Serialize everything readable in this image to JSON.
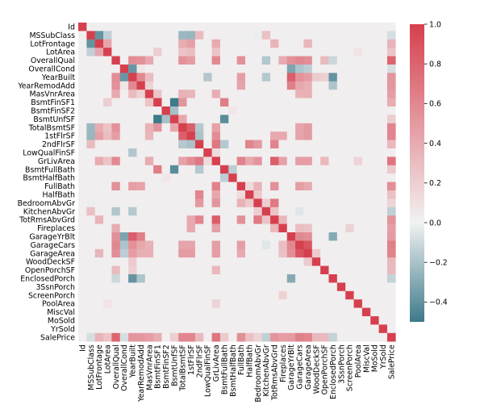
{
  "chart_data": {
    "type": "heatmap",
    "title": "",
    "variables": [
      "Id",
      "MSSubClass",
      "LotFrontage",
      "LotArea",
      "OverallQual",
      "OverallCond",
      "YearBuilt",
      "YearRemodAdd",
      "MasVnrArea",
      "BsmtFinSF1",
      "BsmtFinSF2",
      "BsmtUnfSF",
      "TotalBsmtSF",
      "1stFlrSF",
      "2ndFlrSF",
      "LowQualFinSF",
      "GrLivArea",
      "BsmtFullBath",
      "BsmtHalfBath",
      "FullBath",
      "HalfBath",
      "BedroomAbvGr",
      "KitchenAbvGr",
      "TotRmsAbvGrd",
      "Fireplaces",
      "GarageYrBlt",
      "GarageCars",
      "GarageArea",
      "WoodDeckSF",
      "OpenPorchSF",
      "EnclosedPorch",
      "3SsnPorch",
      "ScreenPorch",
      "PoolArea",
      "MiscVal",
      "MoSold",
      "YrSold",
      "SalePrice"
    ],
    "colorbar": {
      "vmin": -0.5,
      "vmax": 1.0,
      "ticks": [
        1.0,
        0.8,
        0.6,
        0.4,
        0.2,
        0.0,
        -0.2,
        -0.4
      ],
      "tick_labels": [
        "1.0",
        "0.8",
        "0.6",
        "0.4",
        "0.2",
        "0.0",
        "−0.2",
        "−0.4"
      ],
      "low_color": "#3d7a8a",
      "mid_color": "#f2f2f2",
      "high_color": "#d6404e"
    },
    "diagonal": 1.0,
    "default_value": 0.02,
    "strong_pairs": [
      [
        "OverallQual",
        "SalePrice",
        0.79
      ],
      [
        "GrLivArea",
        "SalePrice",
        0.71
      ],
      [
        "GarageCars",
        "SalePrice",
        0.64
      ],
      [
        "GarageArea",
        "SalePrice",
        0.62
      ],
      [
        "TotalBsmtSF",
        "SalePrice",
        0.61
      ],
      [
        "1stFlrSF",
        "SalePrice",
        0.61
      ],
      [
        "FullBath",
        "SalePrice",
        0.56
      ],
      [
        "TotRmsAbvGrd",
        "SalePrice",
        0.53
      ],
      [
        "YearBuilt",
        "SalePrice",
        0.52
      ],
      [
        "YearRemodAdd",
        "SalePrice",
        0.51
      ],
      [
        "GarageYrBlt",
        "SalePrice",
        0.49
      ],
      [
        "MasVnrArea",
        "SalePrice",
        0.48
      ],
      [
        "Fireplaces",
        "SalePrice",
        0.47
      ],
      [
        "BsmtFinSF1",
        "SalePrice",
        0.39
      ],
      [
        "LotFrontage",
        "SalePrice",
        0.35
      ],
      [
        "WoodDeckSF",
        "SalePrice",
        0.32
      ],
      [
        "2ndFlrSF",
        "SalePrice",
        0.32
      ],
      [
        "OpenPorchSF",
        "SalePrice",
        0.32
      ],
      [
        "HalfBath",
        "SalePrice",
        0.28
      ],
      [
        "LotArea",
        "SalePrice",
        0.26
      ],
      [
        "BsmtFullBath",
        "SalePrice",
        0.23
      ],
      [
        "BsmtUnfSF",
        "SalePrice",
        0.21
      ],
      [
        "BedroomAbvGr",
        "SalePrice",
        0.17
      ],
      [
        "EnclosedPorch",
        "SalePrice",
        -0.13
      ],
      [
        "KitchenAbvGr",
        "SalePrice",
        -0.14
      ],
      [
        "MSSubClass",
        "SalePrice",
        -0.08
      ],
      [
        "OverallCond",
        "SalePrice",
        -0.08
      ],
      [
        "GarageCars",
        "GarageArea",
        0.88
      ],
      [
        "YearBuilt",
        "GarageYrBlt",
        0.83
      ],
      [
        "GrLivArea",
        "TotRmsAbvGrd",
        0.83
      ],
      [
        "TotalBsmtSF",
        "1stFlrSF",
        0.82
      ],
      [
        "2ndFlrSF",
        "GrLivArea",
        0.69
      ],
      [
        "BedroomAbvGr",
        "TotRmsAbvGrd",
        0.68
      ],
      [
        "BsmtFinSF1",
        "BsmtFullBath",
        0.65
      ],
      [
        "YearRemodAdd",
        "GarageYrBlt",
        0.64
      ],
      [
        "GrLivArea",
        "FullBath",
        0.63
      ],
      [
        "2ndFlrSF",
        "TotRmsAbvGrd",
        0.62
      ],
      [
        "2ndFlrSF",
        "HalfBath",
        0.61
      ],
      [
        "OverallQual",
        "GarageCars",
        0.6
      ],
      [
        "YearBuilt",
        "YearRemodAdd",
        0.59
      ],
      [
        "GrLivArea",
        "BedroomAbvGr",
        0.52
      ],
      [
        "OverallQual",
        "GrLivArea",
        0.59
      ],
      [
        "OverallQual",
        "YearBuilt",
        0.57
      ],
      [
        "YearBuilt",
        "GarageCars",
        0.54
      ],
      [
        "OverallQual",
        "GarageArea",
        0.56
      ],
      [
        "OverallQual",
        "YearRemodAdd",
        0.55
      ],
      [
        "FullBath",
        "TotRmsAbvGrd",
        0.55
      ],
      [
        "OverallQual",
        "TotalBsmtSF",
        0.54
      ],
      [
        "GarageYrBlt",
        "GarageCars",
        0.59
      ],
      [
        "GarageYrBlt",
        "GarageArea",
        0.56
      ],
      [
        "2ndFlrSF",
        "BedroomAbvGr",
        0.5
      ],
      [
        "BsmtFinSF1",
        "TotalBsmtSF",
        0.52
      ],
      [
        "OverallQual",
        "FullBath",
        0.55
      ],
      [
        "OverallQual",
        "GarageYrBlt",
        0.55
      ],
      [
        "1stFlrSF",
        "GrLivArea",
        0.57
      ],
      [
        "OverallQual",
        "1stFlrSF",
        0.48
      ],
      [
        "YearBuilt",
        "FullBath",
        0.47
      ],
      [
        "YearBuilt",
        "GarageArea",
        0.48
      ],
      [
        "YearRemodAdd",
        "FullBath",
        0.44
      ],
      [
        "1stFlrSF",
        "GarageArea",
        0.49
      ],
      [
        "TotalBsmtSF",
        "GarageArea",
        0.49
      ],
      [
        "1stFlrSF",
        "TotRmsAbvGrd",
        0.41
      ],
      [
        "GrLivArea",
        "HalfBath",
        0.42
      ],
      [
        "MasVnrArea",
        "OverallQual",
        0.41
      ],
      [
        "MasVnrArea",
        "TotalBsmtSF",
        0.36
      ],
      [
        "MasVnrArea",
        "GarageArea",
        0.37
      ],
      [
        "LotFrontage",
        "1stFlrSF",
        0.46
      ],
      [
        "LotFrontage",
        "TotalBsmtSF",
        0.39
      ],
      [
        "LotFrontage",
        "LotArea",
        0.43
      ],
      [
        "LotArea",
        "1stFlrSF",
        0.3
      ],
      [
        "FullBath",
        "HalfBath",
        0.14
      ],
      [
        "Fireplaces",
        "GrLivArea",
        0.46
      ],
      [
        "Fireplaces",
        "1stFlrSF",
        0.41
      ],
      [
        "KitchenAbvGr",
        "BedroomAbvGr",
        0.2
      ],
      [
        "BsmtFinSF2",
        "BsmtHalfBath",
        0.07
      ],
      [
        "BsmtUnfSF",
        "TotalBsmtSF",
        0.42
      ],
      [
        "YearRemodAdd",
        "GarageCars",
        0.42
      ],
      [
        "YearRemodAdd",
        "GarageArea",
        0.37
      ],
      [
        "MSSubClass",
        "LotFrontage",
        -0.39
      ],
      [
        "MSSubClass",
        "LotArea",
        -0.14
      ],
      [
        "MSSubClass",
        "2ndFlrSF",
        0.31
      ],
      [
        "MSSubClass",
        "1stFlrSF",
        -0.25
      ],
      [
        "MSSubClass",
        "TotalBsmtSF",
        -0.24
      ],
      [
        "MSSubClass",
        "BedroomAbvGr",
        -0.02
      ],
      [
        "MSSubClass",
        "KitchenAbvGr",
        0.28
      ],
      [
        "OverallCond",
        "YearBuilt",
        -0.38
      ],
      [
        "OverallCond",
        "YearRemodAdd",
        0.07
      ],
      [
        "OverallCond",
        "GarageYrBlt",
        -0.32
      ],
      [
        "OverallCond",
        "GarageCars",
        -0.19
      ],
      [
        "OverallCond",
        "GarageArea",
        -0.15
      ],
      [
        "BsmtFinSF1",
        "BsmtUnfSF",
        -0.5
      ],
      [
        "BsmtFullBath",
        "BsmtUnfSF",
        -0.42
      ],
      [
        "BsmtFinSF2",
        "BsmtUnfSF",
        -0.21
      ],
      [
        "YearBuilt",
        "EnclosedPorch",
        -0.39
      ],
      [
        "YearRemodAdd",
        "EnclosedPorch",
        -0.19
      ],
      [
        "GarageYrBlt",
        "EnclosedPorch",
        -0.3
      ],
      [
        "OverallQual",
        "EnclosedPorch",
        -0.11
      ],
      [
        "2ndFlrSF",
        "1stFlrSF",
        -0.2
      ],
      [
        "2ndFlrSF",
        "TotalBsmtSF",
        -0.17
      ],
      [
        "BsmtFullBath",
        "BsmtHalfBath",
        -0.15
      ],
      [
        "BsmtFullBath",
        "2ndFlrSF",
        -0.17
      ],
      [
        "BsmtHalfBath",
        "BsmtFinSF2",
        0.07
      ],
      [
        "KitchenAbvGr",
        "YearBuilt",
        -0.17
      ],
      [
        "KitchenAbvGr",
        "OverallQual",
        -0.18
      ],
      [
        "KitchenAbvGr",
        "TotRmsAbvGrd",
        0.26
      ],
      [
        "KitchenAbvGr",
        "GarageCars",
        -0.05
      ],
      [
        "LowQualFinSF",
        "GrLivArea",
        0.13
      ],
      [
        "LowQualFinSF",
        "YearBuilt",
        -0.18
      ],
      [
        "MasVnrArea",
        "YearBuilt",
        0.31
      ],
      [
        "PoolArea",
        "LotArea",
        0.08
      ],
      [
        "PoolArea",
        "GrLivArea",
        0.17
      ],
      [
        "ScreenPorch",
        "Fireplaces",
        0.18
      ],
      [
        "WoodDeckSF",
        "YearBuilt",
        0.22
      ],
      [
        "WoodDeckSF",
        "GarageArea",
        0.22
      ],
      [
        "OpenPorchSF",
        "OverallQual",
        0.31
      ],
      [
        "OpenPorchSF",
        "GrLivArea",
        0.33
      ],
      [
        "OpenPorchSF",
        "YearBuilt",
        0.19
      ],
      [
        "BedroomAbvGr",
        "FullBath",
        0.36
      ],
      [
        "BedroomAbvGr",
        "HalfBath",
        0.23
      ],
      [
        "Fireplaces",
        "TotRmsAbvGrd",
        0.33
      ],
      [
        "Fireplaces",
        "GarageArea",
        0.27
      ],
      [
        "Fireplaces",
        "GarageCars",
        0.3
      ],
      [
        "Fireplaces",
        "OverallQual",
        0.4
      ],
      [
        "GarageCars",
        "FullBath",
        0.47
      ],
      [
        "GarageArea",
        "FullBath",
        0.41
      ],
      [
        "GarageCars",
        "GrLivArea",
        0.47
      ],
      [
        "GarageArea",
        "GrLivArea",
        0.47
      ],
      [
        "TotalBsmtSF",
        "GrLivArea",
        0.45
      ],
      [
        "TotalBsmtSF",
        "GarageCars",
        0.43
      ],
      [
        "1stFlrSF",
        "GarageCars",
        0.44
      ],
      [
        "MasVnrArea",
        "GarageCars",
        0.36
      ],
      [
        "MasVnrArea",
        "1stFlrSF",
        0.34
      ],
      [
        "MasVnrArea",
        "GrLivArea",
        0.39
      ],
      [
        "MasVnrArea",
        "BsmtFinSF1",
        0.26
      ],
      [
        "MasVnrArea",
        "YearRemodAdd",
        0.18
      ],
      [
        "LotFrontage",
        "GrLivArea",
        0.4
      ],
      [
        "LotFrontage",
        "TotRmsAbvGrd",
        0.35
      ],
      [
        "LotFrontage",
        "GarageArea",
        0.34
      ],
      [
        "LotArea",
        "GrLivArea",
        0.26
      ],
      [
        "LotArea",
        "TotalBsmtSF",
        0.26
      ],
      [
        "LotArea",
        "BsmtFinSF1",
        0.21
      ]
    ]
  }
}
